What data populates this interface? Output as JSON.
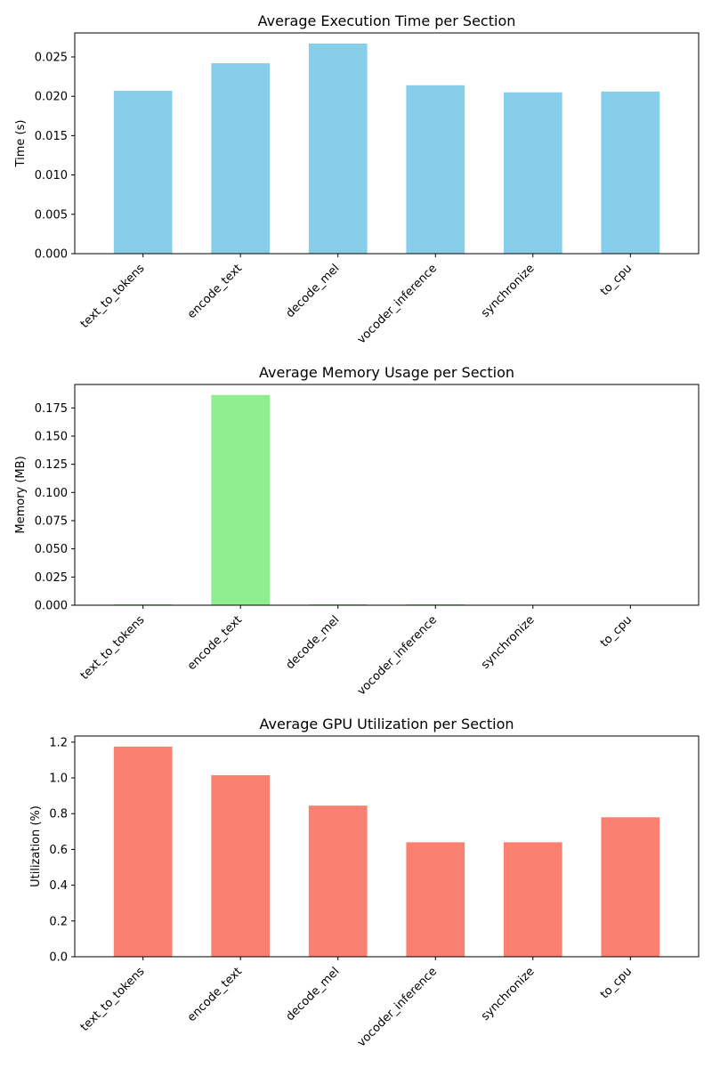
{
  "chart_data": [
    {
      "type": "bar",
      "title": "Average Execution Time per Section",
      "xlabel": "",
      "ylabel": "Time (s)",
      "categories": [
        "text_to_tokens",
        "encode_text",
        "decode_mel",
        "vocoder_inference",
        "synchronize",
        "to_cpu"
      ],
      "values": [
        0.0207,
        0.0242,
        0.0267,
        0.0214,
        0.0205,
        0.0206
      ],
      "ylim": [
        0,
        0.02805
      ],
      "yticks": [
        0.0,
        0.005,
        0.01,
        0.015,
        0.02,
        0.025
      ],
      "ytick_labels": [
        "0.000",
        "0.005",
        "0.010",
        "0.015",
        "0.020",
        "0.025"
      ],
      "color": "#87CEEB",
      "grid": false
    },
    {
      "type": "bar",
      "title": "Average Memory Usage per Section",
      "xlabel": "",
      "ylabel": "Memory (MB)",
      "categories": [
        "text_to_tokens",
        "encode_text",
        "decode_mel",
        "vocoder_inference",
        "synchronize",
        "to_cpu"
      ],
      "values": [
        0.0008,
        0.1865,
        0.0008,
        0.0008,
        0.0,
        0.0
      ],
      "ylim": [
        0,
        0.1958
      ],
      "yticks": [
        0.0,
        0.025,
        0.05,
        0.075,
        0.1,
        0.125,
        0.15,
        0.175
      ],
      "ytick_labels": [
        "0.000",
        "0.025",
        "0.050",
        "0.075",
        "0.100",
        "0.125",
        "0.150",
        "0.175"
      ],
      "color": "#90EE90",
      "grid": false
    },
    {
      "type": "bar",
      "title": "Average GPU Utilization per Section",
      "xlabel": "",
      "ylabel": "Utilization (%)",
      "categories": [
        "text_to_tokens",
        "encode_text",
        "decode_mel",
        "vocoder_inference",
        "synchronize",
        "to_cpu"
      ],
      "values": [
        1.175,
        1.015,
        0.845,
        0.64,
        0.64,
        0.78
      ],
      "ylim": [
        0,
        1.234
      ],
      "yticks": [
        0.0,
        0.2,
        0.4,
        0.6,
        0.8,
        1.0,
        1.2
      ],
      "ytick_labels": [
        "0.0",
        "0.2",
        "0.4",
        "0.6",
        "0.8",
        "1.0",
        "1.2"
      ],
      "color": "#FA8072",
      "grid": false
    }
  ]
}
